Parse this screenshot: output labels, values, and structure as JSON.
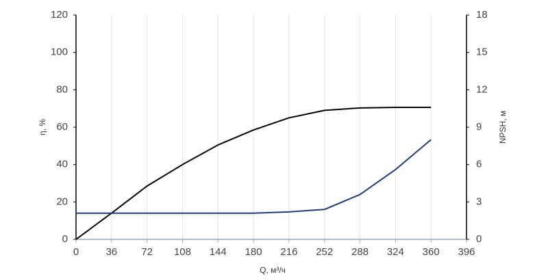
{
  "chart_data": {
    "type": "line",
    "x_label": "Q, м³/ч",
    "y_label": "η, %",
    "y2_label": "NPSH, м",
    "x": [
      0,
      36,
      72,
      108,
      144,
      180,
      216,
      252,
      288,
      324,
      360
    ],
    "series": [
      {
        "color": "#000000",
        "values": [
          0,
          14,
          28.5,
          40,
          50.5,
          58.5,
          65,
          69,
          70.3,
          70.6,
          70.6
        ]
      },
      {
        "color": "#1f3a78",
        "axis": "y2",
        "values": [
          2.1,
          2.1,
          2.1,
          2.1,
          2.1,
          2.1,
          2.2,
          2.4,
          3.6,
          5.6,
          8.0
        ]
      }
    ],
    "xlim": [
      0,
      396
    ],
    "xticks": [
      0,
      36,
      72,
      108,
      144,
      180,
      216,
      252,
      288,
      324,
      360,
      396
    ],
    "ylim": [
      0,
      120
    ],
    "yticks": [
      0,
      20,
      40,
      60,
      80,
      100,
      120
    ],
    "y2lim": [
      0,
      18
    ],
    "y2ticks": [
      0,
      3,
      6,
      9,
      12,
      15,
      18
    ],
    "grid": true
  }
}
